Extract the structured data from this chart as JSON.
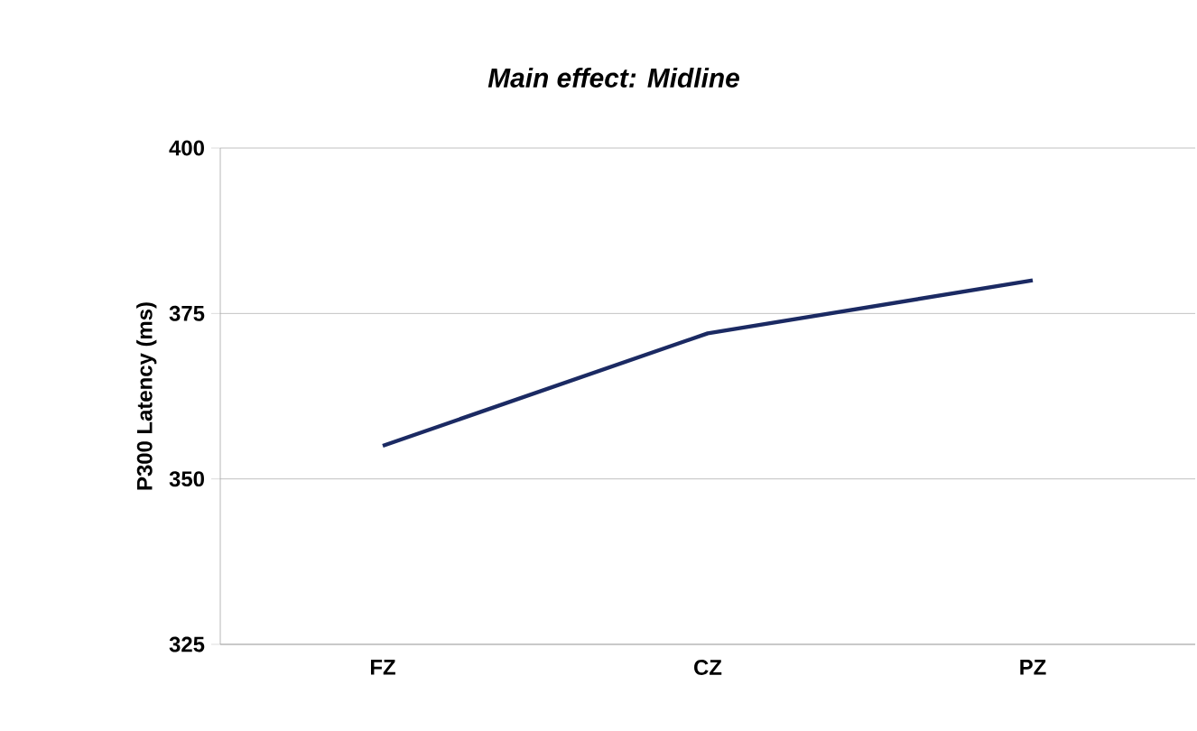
{
  "chart_data": {
    "type": "line",
    "title": "Main effect: Midline",
    "ylabel": "P300 Latency (ms)",
    "categories": [
      "FZ",
      "CZ",
      "PZ"
    ],
    "series": [
      {
        "color": "#1b2a63",
        "values": [
          355,
          372,
          380
        ]
      }
    ],
    "ylim": [
      325,
      400
    ],
    "yticks": [
      325,
      350,
      375,
      400
    ],
    "grid": "y",
    "marker": "none",
    "line_style": "solid"
  }
}
